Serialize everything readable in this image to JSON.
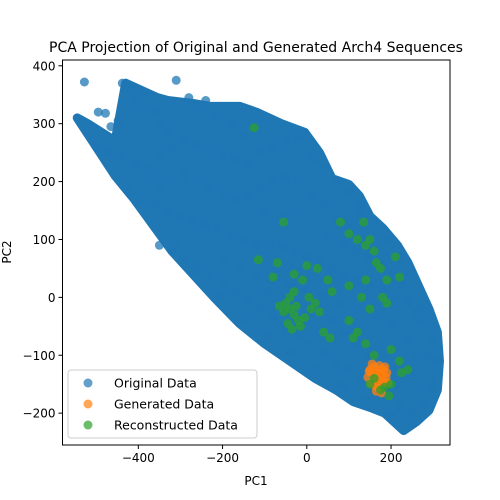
{
  "chart_data": {
    "type": "scatter",
    "title": "PCA Projection of Original and Generated Arch4 Sequences",
    "xlabel": "PC1",
    "ylabel": "PC2",
    "xlim": [
      -580,
      340
    ],
    "ylim": [
      -255,
      410
    ],
    "x_ticks": [
      -400,
      -200,
      0,
      200
    ],
    "y_ticks": [
      -200,
      -100,
      0,
      100,
      200,
      300,
      400
    ],
    "x_tick_labels": [
      "−400",
      "−200",
      "0",
      "200"
    ],
    "y_tick_labels": [
      "−200",
      "−100",
      "0",
      "100",
      "200",
      "300",
      "400"
    ],
    "grid": false,
    "legend_position": "lower-left",
    "series": [
      {
        "name": "Original Data",
        "color": "#1f77b4",
        "region_outline": [
          [
            -545,
            310
          ],
          [
            -520,
            300
          ],
          [
            -455,
            270
          ],
          [
            -430,
            370
          ],
          [
            -355,
            345
          ],
          [
            -330,
            340
          ],
          [
            -270,
            335
          ],
          [
            -230,
            330
          ],
          [
            -160,
            330
          ],
          [
            -120,
            320
          ],
          [
            -60,
            300
          ],
          [
            -5,
            285
          ],
          [
            30,
            250
          ],
          [
            60,
            205
          ],
          [
            100,
            195
          ],
          [
            125,
            175
          ],
          [
            150,
            140
          ],
          [
            180,
            120
          ],
          [
            215,
            90
          ],
          [
            240,
            60
          ],
          [
            265,
            20
          ],
          [
            290,
            -20
          ],
          [
            310,
            -60
          ],
          [
            315,
            -110
          ],
          [
            310,
            -160
          ],
          [
            290,
            -195
          ],
          [
            260,
            -215
          ],
          [
            230,
            -230
          ],
          [
            185,
            -200
          ],
          [
            150,
            -190
          ],
          [
            110,
            -180
          ],
          [
            70,
            -160
          ],
          [
            20,
            -140
          ],
          [
            -40,
            -110
          ],
          [
            -100,
            -80
          ],
          [
            -160,
            -45
          ],
          [
            -220,
            0
          ],
          [
            -270,
            40
          ],
          [
            -320,
            80
          ],
          [
            -370,
            130
          ],
          [
            -410,
            170
          ],
          [
            -455,
            210
          ],
          [
            -500,
            260
          ]
        ],
        "values": [
          [
            -528,
            372
          ],
          [
            -495,
            320
          ],
          [
            -478,
            318
          ],
          [
            -465,
            295
          ],
          [
            -448,
            305
          ],
          [
            -438,
            370
          ],
          [
            -420,
            360
          ],
          [
            -405,
            340
          ],
          [
            -395,
            330
          ],
          [
            -385,
            350
          ],
          [
            -360,
            320
          ],
          [
            -350,
            300
          ],
          [
            -330,
            290
          ],
          [
            -310,
            375
          ],
          [
            -280,
            345
          ],
          [
            -260,
            330
          ],
          [
            -240,
            340
          ],
          [
            -210,
            310
          ],
          [
            -180,
            300
          ],
          [
            -150,
            280
          ],
          [
            -500,
            260
          ],
          [
            -470,
            250
          ],
          [
            -440,
            240
          ],
          [
            -410,
            230
          ],
          [
            -380,
            220
          ],
          [
            -350,
            250
          ],
          [
            -320,
            260
          ],
          [
            -290,
            270
          ],
          [
            -260,
            265
          ],
          [
            -230,
            255
          ],
          [
            -200,
            245
          ],
          [
            -170,
            240
          ],
          [
            -140,
            230
          ],
          [
            -110,
            250
          ],
          [
            -80,
            260
          ],
          [
            -50,
            270
          ],
          [
            -20,
            280
          ],
          [
            10,
            250
          ],
          [
            40,
            220
          ],
          [
            70,
            200
          ],
          [
            100,
            180
          ],
          [
            130,
            160
          ],
          [
            -420,
            180
          ],
          [
            -390,
            170
          ],
          [
            -360,
            160
          ],
          [
            -330,
            150
          ],
          [
            -300,
            140
          ],
          [
            -270,
            130
          ],
          [
            -240,
            125
          ],
          [
            -210,
            120
          ],
          [
            -180,
            110
          ],
          [
            -150,
            100
          ],
          [
            -120,
            95
          ],
          [
            -90,
            90
          ],
          [
            -60,
            85
          ],
          [
            -30,
            80
          ],
          [
            0,
            70
          ],
          [
            30,
            60
          ],
          [
            60,
            50
          ],
          [
            90,
            40
          ],
          [
            120,
            30
          ],
          [
            150,
            20
          ],
          [
            180,
            10
          ],
          [
            210,
            0
          ],
          [
            240,
            -10
          ],
          [
            270,
            -20
          ],
          [
            -350,
            90
          ],
          [
            -320,
            80
          ],
          [
            -290,
            70
          ],
          [
            -260,
            55
          ],
          [
            -230,
            40
          ],
          [
            -200,
            25
          ],
          [
            -170,
            10
          ],
          [
            -140,
            -5
          ],
          [
            -110,
            -20
          ],
          [
            -80,
            -35
          ],
          [
            -50,
            -50
          ],
          [
            -20,
            -65
          ],
          [
            10,
            -80
          ],
          [
            40,
            -95
          ],
          [
            70,
            -110
          ],
          [
            100,
            -125
          ],
          [
            130,
            -140
          ],
          [
            160,
            -160
          ],
          [
            190,
            -175
          ],
          [
            220,
            -190
          ],
          [
            250,
            -200
          ],
          [
            280,
            -185
          ],
          [
            300,
            -150
          ],
          [
            310,
            -110
          ],
          [
            295,
            -70
          ],
          [
            275,
            -40
          ],
          [
            250,
            40
          ],
          [
            220,
            70
          ],
          [
            190,
            100
          ],
          [
            160,
            130
          ],
          [
            130,
            150
          ],
          [
            100,
            120
          ],
          [
            70,
            140
          ],
          [
            40,
            160
          ],
          [
            10,
            180
          ],
          [
            -20,
            200
          ],
          [
            -50,
            210
          ],
          [
            -80,
            200
          ],
          [
            -110,
            190
          ],
          [
            -140,
            180
          ],
          [
            -170,
            170
          ],
          [
            -200,
            180
          ],
          [
            -230,
            190
          ],
          [
            -260,
            200
          ],
          [
            -290,
            210
          ],
          [
            -320,
            200
          ],
          [
            -350,
            190
          ],
          [
            -380,
            200
          ],
          [
            -200,
            60
          ],
          [
            -160,
            50
          ],
          [
            -120,
            40
          ],
          [
            -80,
            30
          ],
          [
            -40,
            20
          ],
          [
            0,
            10
          ],
          [
            40,
            0
          ],
          [
            80,
            -10
          ],
          [
            120,
            -20
          ],
          [
            160,
            -30
          ],
          [
            200,
            -50
          ],
          [
            240,
            -70
          ],
          [
            260,
            -100
          ],
          [
            240,
            -130
          ],
          [
            210,
            -150
          ],
          [
            180,
            -120
          ],
          [
            150,
            -100
          ],
          [
            120,
            -80
          ],
          [
            90,
            -60
          ],
          [
            60,
            -40
          ],
          [
            30,
            -20
          ],
          [
            0,
            -30
          ],
          [
            -30,
            -10
          ],
          [
            -60,
            0
          ],
          [
            -90,
            10
          ],
          [
            -5,
            285
          ],
          [
            20,
            240
          ],
          [
            -15,
            150
          ],
          [
            -60,
            140
          ],
          [
            -100,
            150
          ],
          [
            55,
            110
          ],
          [
            85,
            90
          ],
          [
            115,
            80
          ],
          [
            145,
            70
          ],
          [
            175,
            60
          ],
          [
            205,
            40
          ],
          [
            225,
            20
          ],
          [
            255,
            -30
          ],
          [
            285,
            -100
          ],
          [
            265,
            -160
          ],
          [
            235,
            -215
          ],
          [
            195,
            -205
          ],
          [
            140,
            -180
          ],
          [
            85,
            -150
          ],
          [
            25,
            -125
          ],
          [
            -35,
            -95
          ],
          [
            -95,
            -65
          ],
          [
            -150,
            -35
          ],
          [
            -210,
            5
          ],
          [
            -265,
            45
          ],
          [
            -315,
            90
          ]
        ]
      },
      {
        "name": "Generated Data",
        "color": "#ff7f0e",
        "values": [
          [
            150,
            -125
          ],
          [
            155,
            -130
          ],
          [
            160,
            -120
          ],
          [
            165,
            -135
          ],
          [
            170,
            -128
          ],
          [
            175,
            -140
          ],
          [
            180,
            -132
          ],
          [
            185,
            -145
          ],
          [
            158,
            -150
          ],
          [
            168,
            -155
          ],
          [
            178,
            -150
          ],
          [
            188,
            -138
          ],
          [
            162,
            -142
          ],
          [
            172,
            -118
          ],
          [
            182,
            -125
          ],
          [
            145,
            -138
          ],
          [
            190,
            -130
          ],
          [
            152,
            -148
          ],
          [
            165,
            -162
          ],
          [
            178,
            -165
          ],
          [
            160,
            -135
          ],
          [
            170,
            -145
          ],
          [
            175,
            -125
          ],
          [
            185,
            -120
          ],
          [
            155,
            -115
          ],
          [
            148,
            -128
          ],
          [
            192,
            -148
          ],
          [
            168,
            -128
          ],
          [
            172,
            -138
          ],
          [
            163,
            -152
          ]
        ]
      },
      {
        "name": "Reconstructed Data",
        "color": "#2ca02c",
        "values": [
          [
            -125,
            293
          ],
          [
            -55,
            130
          ],
          [
            -115,
            65
          ],
          [
            -80,
            35
          ],
          [
            -70,
            60
          ],
          [
            -30,
            40
          ],
          [
            -10,
            30
          ],
          [
            0,
            55
          ],
          [
            25,
            50
          ],
          [
            50,
            30
          ],
          [
            80,
            130
          ],
          [
            100,
            110
          ],
          [
            120,
            100
          ],
          [
            135,
            130
          ],
          [
            140,
            90
          ],
          [
            150,
            100
          ],
          [
            160,
            80
          ],
          [
            165,
            60
          ],
          [
            175,
            50
          ],
          [
            210,
            70
          ],
          [
            220,
            35
          ],
          [
            140,
            30
          ],
          [
            100,
            20
          ],
          [
            130,
            0
          ],
          [
            180,
            0
          ],
          [
            190,
            -10
          ],
          [
            -50,
            -10
          ],
          [
            -40,
            -20
          ],
          [
            -30,
            -30
          ],
          [
            -20,
            -40
          ],
          [
            -45,
            -45
          ],
          [
            -35,
            -55
          ],
          [
            -55,
            -25
          ],
          [
            -65,
            -15
          ],
          [
            -25,
            -15
          ],
          [
            -15,
            -50
          ],
          [
            -5,
            -35
          ],
          [
            10,
            -20
          ],
          [
            20,
            -10
          ],
          [
            -40,
            0
          ],
          [
            30,
            -25
          ],
          [
            40,
            -60
          ],
          [
            55,
            -70
          ],
          [
            100,
            -40
          ],
          [
            120,
            -60
          ],
          [
            140,
            -80
          ],
          [
            160,
            -100
          ],
          [
            200,
            -90
          ],
          [
            220,
            -110
          ],
          [
            225,
            -130
          ],
          [
            240,
            -125
          ],
          [
            150,
            -150
          ],
          [
            160,
            -140
          ],
          [
            175,
            -160
          ],
          [
            185,
            -155
          ],
          [
            195,
            -170
          ],
          [
            200,
            -150
          ],
          [
            -30,
            10
          ],
          [
            5,
            0
          ],
          [
            60,
            10
          ],
          [
            110,
            -70
          ],
          [
            150,
            -20
          ],
          [
            190,
            30
          ]
        ]
      }
    ]
  }
}
